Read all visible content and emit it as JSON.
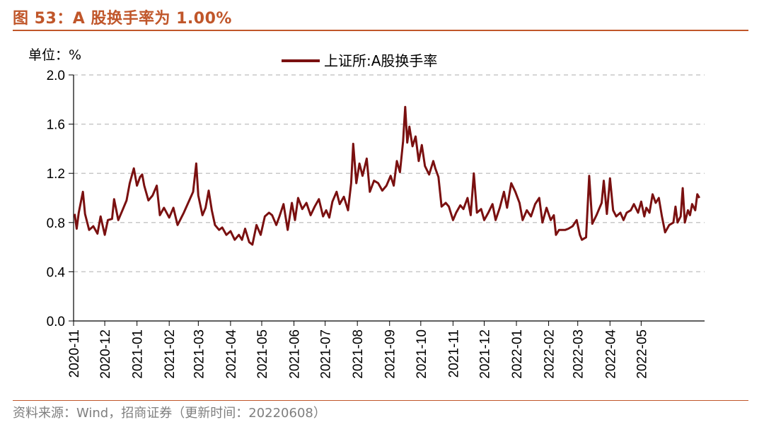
{
  "figure": {
    "title": "图 53：A 股换手率为 1.00%",
    "source": "资料来源：Wind，招商证券（更新时间：20220608）"
  },
  "colors": {
    "accent": "#c0562a",
    "series": "#7a1010",
    "grid": "#c8c8c8"
  },
  "chart_data": {
    "type": "line",
    "unit_label": "单位：%",
    "title": "",
    "xlabel": "",
    "ylabel": "",
    "ylim": [
      0.0,
      2.0
    ],
    "yticks": [
      "0.0",
      "0.4",
      "0.8",
      "1.2",
      "1.6",
      "2.0"
    ],
    "xticks": [
      "2020-11",
      "2020-12",
      "2021-01",
      "2021-02",
      "2021-03",
      "2021-04",
      "2021-05",
      "2021-06",
      "2021-07",
      "2021-08",
      "2021-09",
      "2021-10",
      "2021-11",
      "2021-12",
      "2022-01",
      "2022-02",
      "2022-03",
      "2022-04",
      "2022-05"
    ],
    "grid": true,
    "legend_position": "top",
    "series": [
      {
        "name": "上证所:A股换手率",
        "points": [
          [
            "2020-11-02",
            0.87
          ],
          [
            "2020-11-04",
            0.75
          ],
          [
            "2020-11-06",
            0.88
          ],
          [
            "2020-11-10",
            1.05
          ],
          [
            "2020-11-12",
            0.87
          ],
          [
            "2020-11-16",
            0.74
          ],
          [
            "2020-11-20",
            0.77
          ],
          [
            "2020-11-24",
            0.71
          ],
          [
            "2020-11-27",
            0.85
          ],
          [
            "2020-12-01",
            0.7
          ],
          [
            "2020-12-04",
            0.82
          ],
          [
            "2020-12-08",
            0.83
          ],
          [
            "2020-12-10",
            0.99
          ],
          [
            "2020-12-14",
            0.82
          ],
          [
            "2020-12-18",
            0.9
          ],
          [
            "2020-12-22",
            0.98
          ],
          [
            "2020-12-25",
            1.12
          ],
          [
            "2020-12-29",
            1.24
          ],
          [
            "2021-01-01",
            1.1
          ],
          [
            "2021-01-04",
            1.17
          ],
          [
            "2021-01-06",
            1.19
          ],
          [
            "2021-01-08",
            1.1
          ],
          [
            "2021-01-12",
            0.98
          ],
          [
            "2021-01-16",
            1.02
          ],
          [
            "2021-01-20",
            1.1
          ],
          [
            "2021-01-23",
            0.86
          ],
          [
            "2021-01-27",
            0.92
          ],
          [
            "2021-02-01",
            0.84
          ],
          [
            "2021-02-05",
            0.92
          ],
          [
            "2021-02-09",
            0.78
          ],
          [
            "2021-02-15",
            0.88
          ],
          [
            "2021-02-24",
            1.05
          ],
          [
            "2021-02-27",
            1.28
          ],
          [
            "2021-03-01",
            1.02
          ],
          [
            "2021-03-05",
            0.86
          ],
          [
            "2021-03-08",
            0.92
          ],
          [
            "2021-03-11",
            1.06
          ],
          [
            "2021-03-14",
            0.9
          ],
          [
            "2021-03-17",
            0.78
          ],
          [
            "2021-03-21",
            0.74
          ],
          [
            "2021-03-24",
            0.76
          ],
          [
            "2021-03-28",
            0.7
          ],
          [
            "2021-04-01",
            0.73
          ],
          [
            "2021-04-05",
            0.66
          ],
          [
            "2021-04-09",
            0.7
          ],
          [
            "2021-04-12",
            0.66
          ],
          [
            "2021-04-15",
            0.75
          ],
          [
            "2021-04-19",
            0.64
          ],
          [
            "2021-04-22",
            0.62
          ],
          [
            "2021-04-26",
            0.78
          ],
          [
            "2021-04-30",
            0.7
          ],
          [
            "2021-05-04",
            0.85
          ],
          [
            "2021-05-08",
            0.88
          ],
          [
            "2021-05-11",
            0.86
          ],
          [
            "2021-05-15",
            0.78
          ],
          [
            "2021-05-18",
            0.85
          ],
          [
            "2021-05-22",
            0.95
          ],
          [
            "2021-05-26",
            0.74
          ],
          [
            "2021-05-30",
            0.96
          ],
          [
            "2021-06-02",
            0.82
          ],
          [
            "2021-06-05",
            1.0
          ],
          [
            "2021-06-09",
            0.91
          ],
          [
            "2021-06-13",
            0.96
          ],
          [
            "2021-06-17",
            0.86
          ],
          [
            "2021-06-21",
            0.93
          ],
          [
            "2021-06-25",
            0.99
          ],
          [
            "2021-06-29",
            0.85
          ],
          [
            "2021-07-02",
            0.9
          ],
          [
            "2021-07-05",
            0.84
          ],
          [
            "2021-07-08",
            0.97
          ],
          [
            "2021-07-12",
            1.05
          ],
          [
            "2021-07-15",
            0.95
          ],
          [
            "2021-07-19",
            1.01
          ],
          [
            "2021-07-23",
            0.9
          ],
          [
            "2021-07-26",
            1.12
          ],
          [
            "2021-07-28",
            1.44
          ],
          [
            "2021-07-31",
            1.12
          ],
          [
            "2021-08-03",
            1.28
          ],
          [
            "2021-08-06",
            1.18
          ],
          [
            "2021-08-10",
            1.32
          ],
          [
            "2021-08-13",
            1.05
          ],
          [
            "2021-08-17",
            1.14
          ],
          [
            "2021-08-21",
            1.12
          ],
          [
            "2021-08-25",
            1.06
          ],
          [
            "2021-08-29",
            1.1
          ],
          [
            "2021-09-02",
            1.18
          ],
          [
            "2021-09-05",
            1.1
          ],
          [
            "2021-09-08",
            1.3
          ],
          [
            "2021-09-11",
            1.21
          ],
          [
            "2021-09-14",
            1.46
          ],
          [
            "2021-09-16",
            1.74
          ],
          [
            "2021-09-18",
            1.45
          ],
          [
            "2021-09-20",
            1.58
          ],
          [
            "2021-09-23",
            1.42
          ],
          [
            "2021-09-26",
            1.5
          ],
          [
            "2021-09-29",
            1.3
          ],
          [
            "2021-10-02",
            1.43
          ],
          [
            "2021-10-05",
            1.26
          ],
          [
            "2021-10-09",
            1.19
          ],
          [
            "2021-10-13",
            1.3
          ],
          [
            "2021-10-15",
            1.24
          ],
          [
            "2021-10-18",
            1.17
          ],
          [
            "2021-10-21",
            0.93
          ],
          [
            "2021-10-25",
            0.96
          ],
          [
            "2021-10-28",
            0.93
          ],
          [
            "2021-11-01",
            0.82
          ],
          [
            "2021-11-04",
            0.88
          ],
          [
            "2021-11-08",
            0.94
          ],
          [
            "2021-11-11",
            0.91
          ],
          [
            "2021-11-15",
            1.0
          ],
          [
            "2021-11-18",
            0.86
          ],
          [
            "2021-11-21",
            1.2
          ],
          [
            "2021-11-24",
            0.88
          ],
          [
            "2021-11-28",
            0.91
          ],
          [
            "2021-12-01",
            0.82
          ],
          [
            "2021-12-05",
            0.88
          ],
          [
            "2021-12-09",
            0.95
          ],
          [
            "2021-12-12",
            0.82
          ],
          [
            "2021-12-16",
            0.92
          ],
          [
            "2021-12-20",
            1.05
          ],
          [
            "2021-12-23",
            0.92
          ],
          [
            "2021-12-27",
            1.12
          ],
          [
            "2021-12-31",
            1.05
          ],
          [
            "2022-01-04",
            0.96
          ],
          [
            "2022-01-07",
            0.82
          ],
          [
            "2022-01-11",
            0.9
          ],
          [
            "2022-01-15",
            0.85
          ],
          [
            "2022-01-19",
            0.95
          ],
          [
            "2022-01-23",
            1.0
          ],
          [
            "2022-01-26",
            0.8
          ],
          [
            "2022-01-30",
            0.92
          ],
          [
            "2022-02-03",
            0.82
          ],
          [
            "2022-02-06",
            0.86
          ],
          [
            "2022-02-08",
            0.7
          ],
          [
            "2022-02-11",
            0.74
          ],
          [
            "2022-02-14",
            0.74
          ],
          [
            "2022-02-17",
            0.74
          ],
          [
            "2022-02-20",
            0.75
          ],
          [
            "2022-02-24",
            0.77
          ],
          [
            "2022-02-28",
            0.82
          ],
          [
            "2022-03-03",
            0.7
          ],
          [
            "2022-03-05",
            0.66
          ],
          [
            "2022-03-09",
            0.68
          ],
          [
            "2022-03-12",
            1.18
          ],
          [
            "2022-03-15",
            0.79
          ],
          [
            "2022-03-19",
            0.86
          ],
          [
            "2022-03-21",
            0.9
          ],
          [
            "2022-03-24",
            0.96
          ],
          [
            "2022-03-26",
            1.14
          ],
          [
            "2022-03-29",
            0.87
          ],
          [
            "2022-04-01",
            1.16
          ],
          [
            "2022-04-04",
            0.9
          ],
          [
            "2022-04-07",
            0.85
          ],
          [
            "2022-04-11",
            0.88
          ],
          [
            "2022-04-14",
            0.82
          ],
          [
            "2022-04-17",
            0.88
          ],
          [
            "2022-04-21",
            0.9
          ],
          [
            "2022-04-24",
            0.95
          ],
          [
            "2022-04-28",
            0.88
          ],
          [
            "2022-05-01",
            0.97
          ],
          [
            "2022-05-04",
            0.85
          ],
          [
            "2022-05-06",
            0.92
          ],
          [
            "2022-05-09",
            0.88
          ],
          [
            "2022-05-12",
            1.03
          ],
          [
            "2022-05-15",
            0.96
          ],
          [
            "2022-05-18",
            1.0
          ],
          [
            "2022-05-21",
            0.85
          ],
          [
            "2022-05-24",
            0.72
          ],
          [
            "2022-05-28",
            0.78
          ],
          [
            "2022-06-01",
            0.8
          ],
          [
            "2022-06-03",
            0.93
          ],
          [
            "2022-06-05",
            0.8
          ],
          [
            "2022-06-08",
            0.85
          ],
          [
            "2022-06-10",
            1.08
          ],
          [
            "2022-06-12",
            0.8
          ],
          [
            "2022-06-15",
            0.9
          ],
          [
            "2022-06-17",
            0.86
          ],
          [
            "2022-06-19",
            0.95
          ],
          [
            "2022-06-22",
            0.9
          ],
          [
            "2022-06-24",
            1.03
          ],
          [
            "2022-06-26",
            1.0
          ]
        ]
      }
    ]
  }
}
